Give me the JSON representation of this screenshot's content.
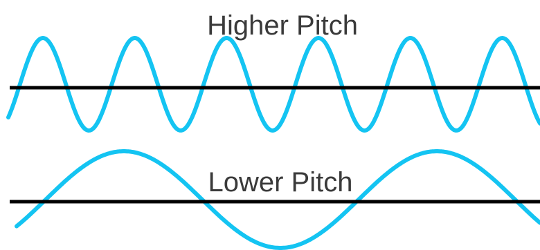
{
  "labels": {
    "higher": "Higher Pitch",
    "lower": "Lower Pitch"
  },
  "colors": {
    "wave": "#14c4f2",
    "axis": "#000000",
    "text": "#3a3a3a",
    "background": "#ffffff"
  },
  "waves": {
    "higher": {
      "cycles_shown": 5.6
    },
    "lower": {
      "cycles_shown": 1.7
    }
  }
}
